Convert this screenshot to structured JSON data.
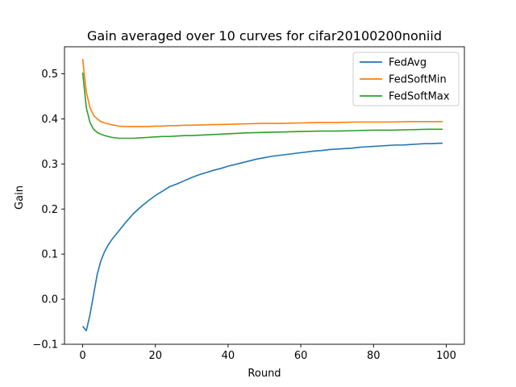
{
  "chart_data": {
    "type": "line",
    "title": "Gain averaged over 10 curves for cifar20100200noniid",
    "xlabel": "Round",
    "ylabel": "Gain",
    "xlim": [
      -5,
      105
    ],
    "ylim": [
      -0.1,
      0.56
    ],
    "xticks": [
      0,
      20,
      40,
      60,
      80,
      100
    ],
    "yticks": [
      -0.1,
      0.0,
      0.1,
      0.2,
      0.3,
      0.4,
      0.5
    ],
    "ytick_labels": [
      "−0.1",
      "0.0",
      "0.1",
      "0.2",
      "0.3",
      "0.4",
      "0.5"
    ],
    "grid": false,
    "legend_position": "top-right",
    "series": [
      {
        "name": "FedAvg",
        "color": "#1f77b4",
        "x": [
          0,
          1,
          2,
          3,
          4,
          5,
          6,
          7,
          8,
          10,
          12,
          14,
          16,
          18,
          20,
          22,
          24,
          26,
          28,
          30,
          32,
          34,
          36,
          38,
          40,
          42,
          44,
          46,
          48,
          50,
          52,
          54,
          56,
          58,
          60,
          62,
          64,
          66,
          68,
          70,
          72,
          74,
          76,
          78,
          80,
          82,
          84,
          86,
          88,
          90,
          92,
          94,
          96,
          98,
          99
        ],
        "y": [
          -0.06,
          -0.07,
          -0.035,
          0.01,
          0.055,
          0.085,
          0.105,
          0.12,
          0.132,
          0.152,
          0.172,
          0.19,
          0.205,
          0.218,
          0.23,
          0.24,
          0.25,
          0.256,
          0.263,
          0.27,
          0.276,
          0.281,
          0.286,
          0.29,
          0.295,
          0.299,
          0.303,
          0.307,
          0.311,
          0.314,
          0.317,
          0.319,
          0.321,
          0.323,
          0.325,
          0.327,
          0.329,
          0.33,
          0.332,
          0.333,
          0.334,
          0.335,
          0.337,
          0.338,
          0.339,
          0.34,
          0.341,
          0.342,
          0.342,
          0.343,
          0.344,
          0.345,
          0.345,
          0.346,
          0.346
        ]
      },
      {
        "name": "FedSoftMin",
        "color": "#ff7f0e",
        "x": [
          0,
          1,
          2,
          3,
          4,
          5,
          6,
          8,
          10,
          12,
          14,
          16,
          18,
          20,
          22,
          24,
          26,
          28,
          30,
          35,
          40,
          45,
          50,
          55,
          60,
          65,
          70,
          75,
          80,
          85,
          90,
          95,
          99
        ],
        "y": [
          0.533,
          0.46,
          0.425,
          0.408,
          0.4,
          0.394,
          0.391,
          0.387,
          0.384,
          0.383,
          0.383,
          0.383,
          0.383,
          0.384,
          0.384,
          0.385,
          0.385,
          0.386,
          0.386,
          0.387,
          0.388,
          0.389,
          0.39,
          0.39,
          0.391,
          0.392,
          0.392,
          0.393,
          0.393,
          0.393,
          0.394,
          0.394,
          0.394
        ]
      },
      {
        "name": "FedSoftMax",
        "color": "#2ca02c",
        "x": [
          0,
          1,
          2,
          3,
          4,
          5,
          6,
          8,
          10,
          12,
          14,
          16,
          18,
          20,
          22,
          24,
          26,
          28,
          30,
          35,
          40,
          45,
          50,
          55,
          60,
          65,
          70,
          75,
          80,
          85,
          90,
          95,
          99
        ],
        "y": [
          0.503,
          0.425,
          0.392,
          0.377,
          0.37,
          0.366,
          0.363,
          0.359,
          0.357,
          0.357,
          0.357,
          0.358,
          0.359,
          0.36,
          0.361,
          0.361,
          0.362,
          0.363,
          0.363,
          0.365,
          0.367,
          0.369,
          0.37,
          0.371,
          0.372,
          0.373,
          0.373,
          0.374,
          0.375,
          0.375,
          0.376,
          0.377,
          0.377
        ]
      }
    ]
  }
}
